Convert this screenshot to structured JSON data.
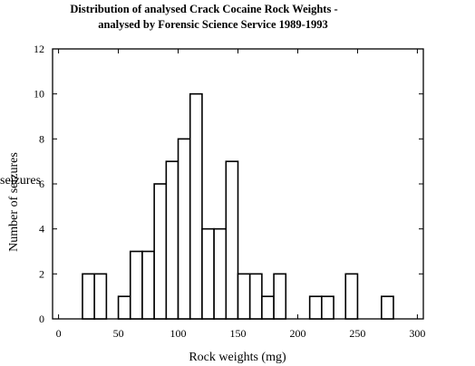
{
  "chart_data": {
    "type": "bar",
    "title": "Distribution of analysed Crack Cocaine Rock Weights -",
    "subtitle": "analysed by Forensic Science Service 1989-1993",
    "xlabel": "Rock weights (mg)",
    "ylabel": "Number of seizures",
    "overlay_text": "seizures",
    "xlim": [
      -5,
      305
    ],
    "ylim": [
      0,
      12
    ],
    "bin_width": 10,
    "xticks": [
      0,
      50,
      100,
      150,
      200,
      250,
      300
    ],
    "yticks": [
      0,
      2,
      4,
      6,
      8,
      10,
      12
    ],
    "bin_starts": [
      0,
      10,
      20,
      30,
      40,
      50,
      60,
      70,
      80,
      90,
      100,
      110,
      120,
      130,
      140,
      150,
      160,
      170,
      180,
      190,
      200,
      210,
      220,
      230,
      240,
      250,
      260,
      270,
      280,
      290
    ],
    "values": [
      0,
      0,
      2,
      2,
      0,
      1,
      3,
      3,
      6,
      7,
      8,
      10,
      4,
      4,
      7,
      2,
      2,
      1,
      2,
      0,
      0,
      1,
      1,
      0,
      2,
      0,
      0,
      1,
      0,
      0
    ],
    "grid": false,
    "legend": "none"
  }
}
